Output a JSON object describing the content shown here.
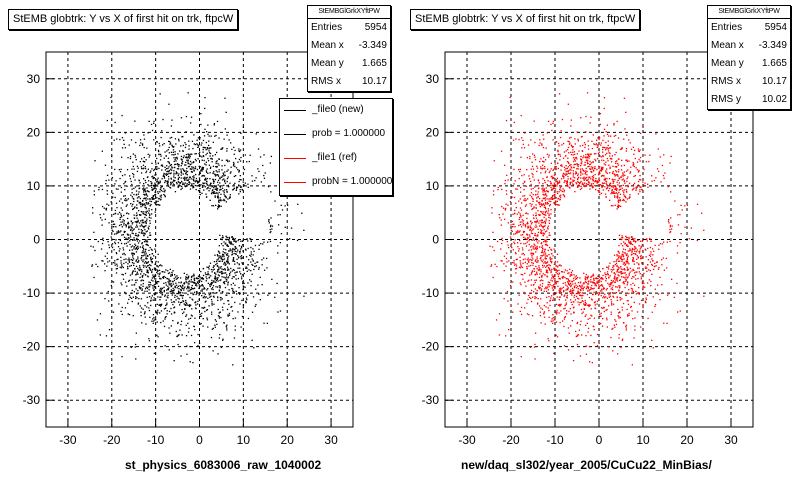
{
  "chart_data": [
    {
      "type": "scatter",
      "title": "StEMB globtrk: Y vs X of first hit on trk, ftpcW",
      "xlabel": "st_physics_6083006_raw_1040002",
      "ylabel": "",
      "xlim": [
        -35,
        35
      ],
      "ylim": [
        -35,
        35
      ],
      "xticks": [
        -30,
        -20,
        -10,
        0,
        10,
        20,
        30
      ],
      "yticks": [
        -30,
        -20,
        -10,
        0,
        10,
        20,
        30
      ],
      "grid": true,
      "marker_color": "#000000",
      "stats": {
        "name": "StEMBGlGrkXYftPW",
        "rows": [
          {
            "label": "Entries",
            "value": "5954"
          },
          {
            "label": "Mean x",
            "value": "-3.349"
          },
          {
            "label": "Mean y",
            "value": "1.665"
          },
          {
            "label": "RMS x",
            "value": "10.17"
          }
        ]
      },
      "legend": {
        "placement": "top-right",
        "entries": [
          {
            "label": "_file0 (new)",
            "color": "#000000"
          },
          {
            "label": "prob = 1.000000",
            "color": "#000000"
          },
          {
            "label": "_file1 (ref)",
            "color": "#ff0000"
          },
          {
            "label": "probN = 1.000000",
            "color": "#ff0000"
          }
        ]
      }
    },
    {
      "type": "scatter",
      "title": "StEMB globtrk: Y vs X of first hit on trk, ftpcW",
      "xlabel": "new/daq_sl302/year_2005/CuCu22_MinBias/",
      "ylabel": "",
      "xlim": [
        -35,
        35
      ],
      "ylim": [
        -35,
        35
      ],
      "xticks": [
        -30,
        -20,
        -10,
        0,
        10,
        20,
        30
      ],
      "yticks": [
        -30,
        -20,
        -10,
        0,
        10,
        20,
        30
      ],
      "grid": true,
      "marker_color": "#ff0000",
      "stats": {
        "name": "StEMBGlGrkXYftPW",
        "rows": [
          {
            "label": "Entries",
            "value": "5954"
          },
          {
            "label": "Mean x",
            "value": "-3.349"
          },
          {
            "label": "Mean y",
            "value": "1.665"
          },
          {
            "label": "RMS x",
            "value": "10.17"
          },
          {
            "label": "RMS y",
            "value": "10.02"
          }
        ]
      }
    }
  ]
}
